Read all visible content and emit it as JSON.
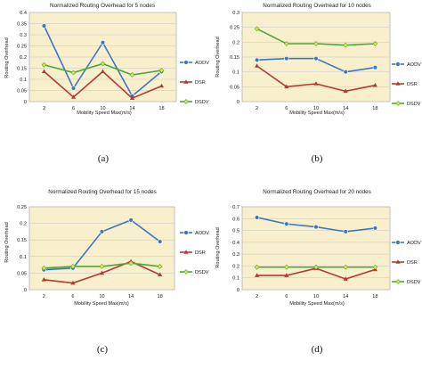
{
  "colors": {
    "AODV": "#3f77bf",
    "DSR": "#b23a38",
    "DSDV": "#4aa838",
    "plot_bg": "#f8efcd",
    "grid": "#c9c9c9"
  },
  "chart_data": [
    {
      "type": "line",
      "title": "Normalized Routing Overhead for  5  nodes",
      "xlabel": "Mobility Speed Max(m/s)",
      "ylabel": "Routing Overhead",
      "caption": "(a)",
      "x": [
        "2",
        "6",
        "10",
        "14",
        "18"
      ],
      "ylim": [
        0,
        0.4
      ],
      "yticks": [
        "0",
        "0.05",
        "0.1",
        "0.15",
        "0.2",
        "0.25",
        "0.3",
        "0.35",
        "0.4"
      ],
      "grid": true,
      "legend": "right",
      "series": [
        {
          "name": "AODV",
          "values": [
            0.34,
            0.06,
            0.265,
            0.025,
            0.135
          ]
        },
        {
          "name": "DSR",
          "values": [
            0.135,
            0.02,
            0.135,
            0.015,
            0.07
          ]
        },
        {
          "name": "DSDV",
          "values": [
            0.165,
            0.13,
            0.17,
            0.12,
            0.14
          ]
        }
      ]
    },
    {
      "type": "line",
      "title": "Normalized Routing Overhead for  10  nodes",
      "xlabel": "Mobility Speed Max(m/s)",
      "ylabel": "Routing Overhead",
      "caption": "(b)",
      "x": [
        "2",
        "6",
        "10",
        "14",
        "18"
      ],
      "ylim": [
        0,
        0.3
      ],
      "yticks": [
        "0",
        "0.05",
        "0.1",
        "0.15",
        "0.2",
        "0.25",
        "0.3"
      ],
      "grid": true,
      "legend": "right",
      "series": [
        {
          "name": "AODV",
          "values": [
            0.14,
            0.145,
            0.145,
            0.1,
            0.115
          ]
        },
        {
          "name": "DSR",
          "values": [
            0.12,
            0.05,
            0.06,
            0.035,
            0.055
          ]
        },
        {
          "name": "DSDV",
          "values": [
            0.245,
            0.195,
            0.195,
            0.19,
            0.195
          ]
        }
      ]
    },
    {
      "type": "line",
      "title": "Normalized Routing Overhead for 15  nodes",
      "xlabel": "Mobility Speed Max(m/s)",
      "ylabel": "Routing Overhead",
      "caption": "(c)",
      "x": [
        "2",
        "6",
        "10",
        "14",
        "18"
      ],
      "ylim": [
        0,
        0.25
      ],
      "yticks": [
        "0",
        "0.05",
        "0.1",
        "0.15",
        "0.2",
        "0.25"
      ],
      "grid": true,
      "legend": "right",
      "series": [
        {
          "name": "AODV",
          "values": [
            0.06,
            0.065,
            0.175,
            0.21,
            0.145
          ]
        },
        {
          "name": "DSR",
          "values": [
            0.03,
            0.02,
            0.05,
            0.085,
            0.045
          ]
        },
        {
          "name": "DSDV",
          "values": [
            0.065,
            0.07,
            0.07,
            0.08,
            0.07
          ]
        }
      ]
    },
    {
      "type": "line",
      "title": "Normalized Routing Overhead for  20  nodes",
      "xlabel": "Mobility Speed Max(m/s)",
      "ylabel": "Routing Overhead",
      "caption": "(d)",
      "x": [
        "2",
        "6",
        "10",
        "14",
        "18"
      ],
      "ylim": [
        0,
        0.7
      ],
      "yticks": [
        "0",
        "0.1",
        "0.2",
        "0.3",
        "0.4",
        "0.5",
        "0.6",
        "0.7"
      ],
      "grid": true,
      "legend": "right",
      "series": [
        {
          "name": "AODV",
          "values": [
            0.61,
            0.555,
            0.53,
            0.49,
            0.52
          ]
        },
        {
          "name": "DSR",
          "values": [
            0.12,
            0.12,
            0.18,
            0.09,
            0.17
          ]
        },
        {
          "name": "DSDV",
          "values": [
            0.19,
            0.19,
            0.19,
            0.19,
            0.19
          ]
        }
      ]
    }
  ]
}
